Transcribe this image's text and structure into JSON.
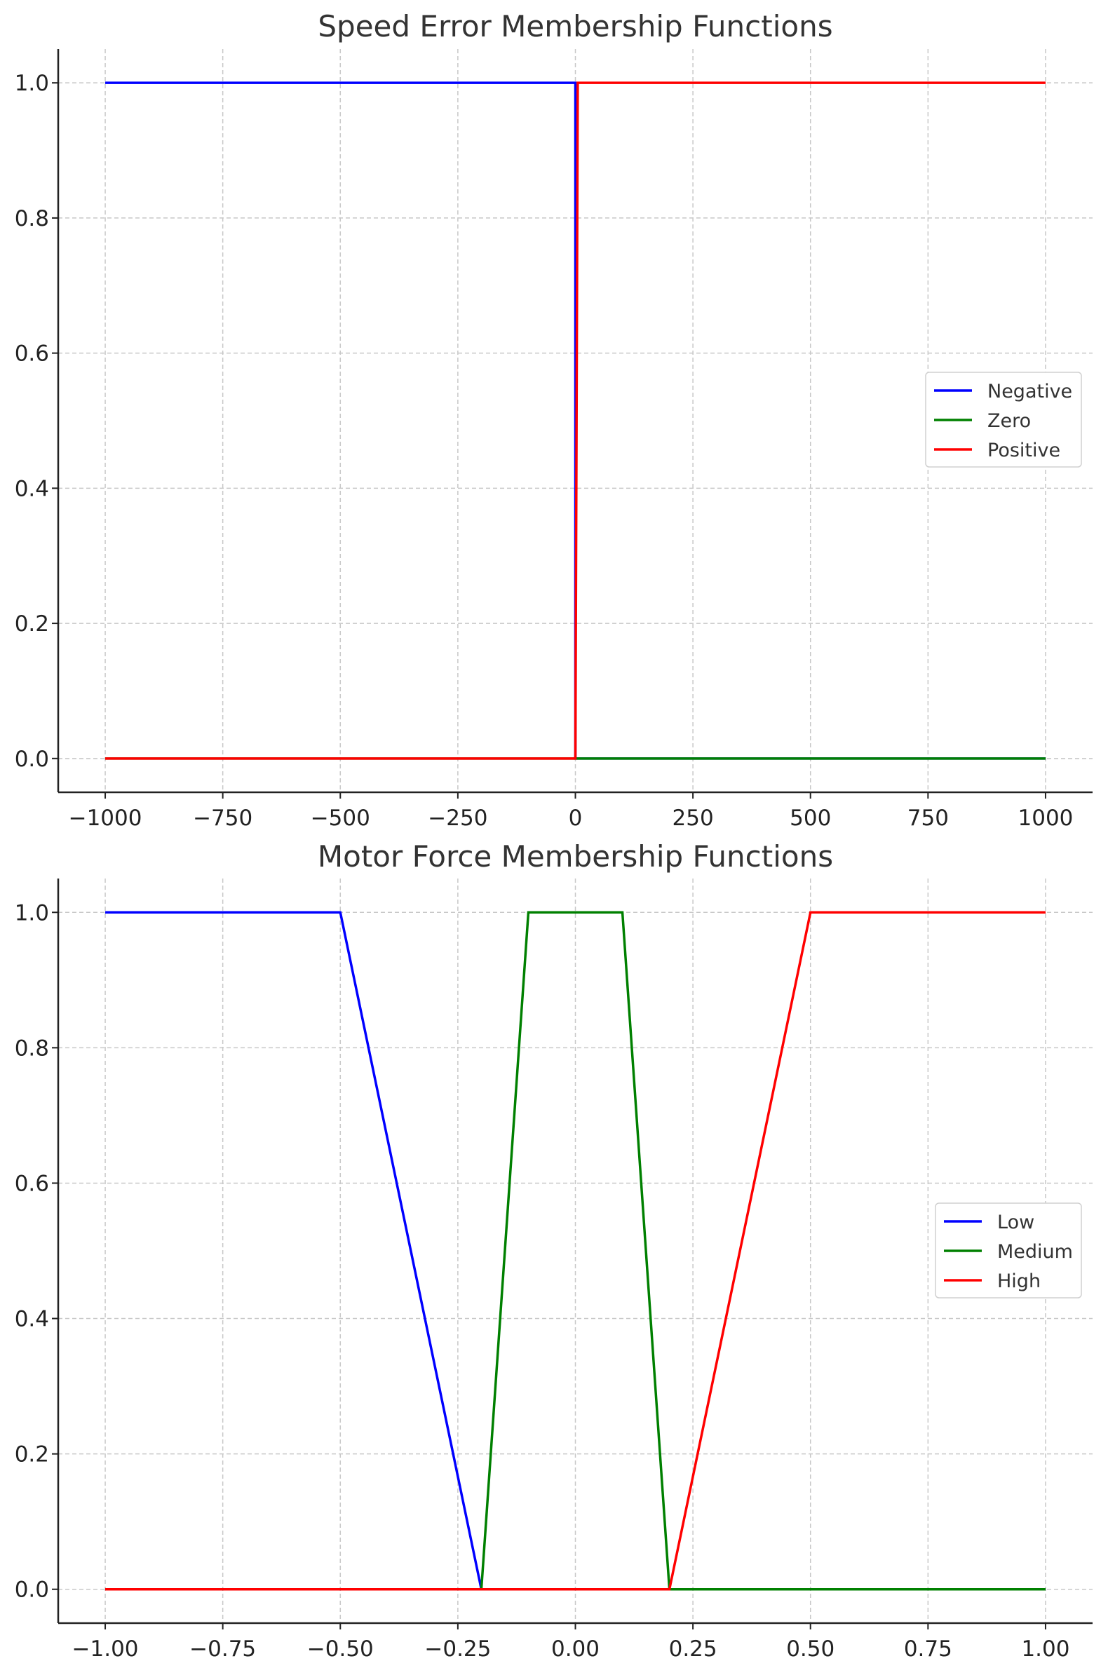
{
  "chart_data": [
    {
      "type": "line",
      "title": "Speed Error Membership Functions",
      "xlabel": "",
      "ylabel": "",
      "xlim": [
        -1100,
        1100
      ],
      "ylim": [
        -0.05,
        1.05
      ],
      "xticks": [
        -1000,
        -750,
        -500,
        -250,
        0,
        250,
        500,
        750,
        1000
      ],
      "xtick_labels": [
        "−1000",
        "−750",
        "−500",
        "−250",
        "0",
        "250",
        "500",
        "750",
        "1000"
      ],
      "yticks": [
        0.0,
        0.2,
        0.4,
        0.6,
        0.8,
        1.0
      ],
      "ytick_labels": [
        "0.0",
        "0.2",
        "0.4",
        "0.6",
        "0.8",
        "1.0"
      ],
      "grid": true,
      "legend_position": "center-right",
      "series": [
        {
          "name": "Negative",
          "color": "#0000ff",
          "x": [
            -1000,
            0,
            0,
            1000
          ],
          "y": [
            1,
            1,
            0,
            0
          ]
        },
        {
          "name": "Zero",
          "color": "#008000",
          "x": [
            -1000,
            0,
            0,
            1000
          ],
          "y": [
            0,
            0,
            0,
            0
          ]
        },
        {
          "name": "Positive",
          "color": "#ff0000",
          "x": [
            -1000,
            0,
            5,
            1000
          ],
          "y": [
            0,
            0,
            1,
            1
          ]
        }
      ]
    },
    {
      "type": "line",
      "title": "Motor Force Membership Functions",
      "xlabel": "",
      "ylabel": "",
      "xlim": [
        -1.1,
        1.1
      ],
      "ylim": [
        -0.05,
        1.05
      ],
      "xticks": [
        -1.0,
        -0.75,
        -0.5,
        -0.25,
        0.0,
        0.25,
        0.5,
        0.75,
        1.0
      ],
      "xtick_labels": [
        "−1.00",
        "−0.75",
        "−0.50",
        "−0.25",
        "0.00",
        "0.25",
        "0.50",
        "0.75",
        "1.00"
      ],
      "yticks": [
        0.0,
        0.2,
        0.4,
        0.6,
        0.8,
        1.0
      ],
      "ytick_labels": [
        "0.0",
        "0.2",
        "0.4",
        "0.6",
        "0.8",
        "1.0"
      ],
      "grid": true,
      "legend_position": "center-right",
      "series": [
        {
          "name": "Low",
          "color": "#0000ff",
          "x": [
            -1.0,
            -0.5,
            -0.2,
            1.0
          ],
          "y": [
            1,
            1,
            0,
            0
          ]
        },
        {
          "name": "Medium",
          "color": "#008000",
          "x": [
            -1.0,
            -0.2,
            -0.1,
            0.1,
            0.2,
            1.0
          ],
          "y": [
            0,
            0,
            1,
            1,
            0,
            0
          ]
        },
        {
          "name": "High",
          "color": "#ff0000",
          "x": [
            -1.0,
            0.2,
            0.5,
            1.0
          ],
          "y": [
            0,
            0,
            1,
            1
          ]
        }
      ]
    }
  ]
}
